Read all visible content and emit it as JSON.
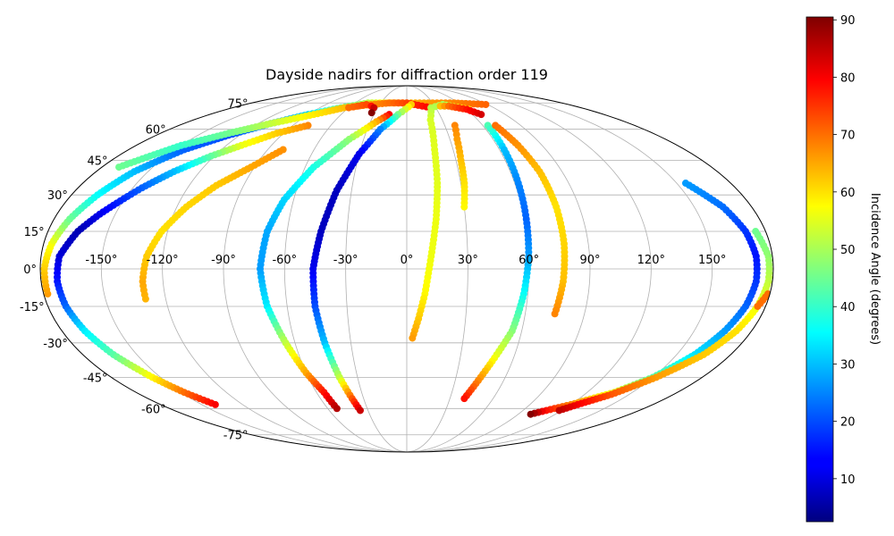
{
  "chart_data": {
    "type": "scatter",
    "projection": "mollweide",
    "title": "Dayside nadirs for diffraction order 119",
    "grid": true,
    "lon_ticks": [
      "-150°",
      "-120°",
      "-90°",
      "-60°",
      "-30°",
      "0°",
      "30°",
      "60°",
      "90°",
      "120°",
      "150°"
    ],
    "lat_ticks": [
      "-75°",
      "-60°",
      "-45°",
      "-30°",
      "-15°",
      "0°",
      "15°",
      "30°",
      "45°",
      "60°",
      "75°"
    ],
    "colorbar": {
      "label": "Incidence Angle (degrees)",
      "colormap": "jet",
      "range": [
        2.5,
        90.5
      ],
      "ticks": [
        "10",
        "20",
        "30",
        "40",
        "50",
        "60",
        "70",
        "80",
        "90"
      ]
    },
    "series": [
      {
        "points": [
          [
            -178,
            -10,
            66
          ],
          [
            -178,
            0,
            62
          ],
          [
            -176,
            10,
            57
          ],
          [
            -172,
            20,
            45
          ],
          [
            -166,
            30,
            36
          ],
          [
            -158,
            40,
            30
          ],
          [
            -144,
            50,
            22
          ],
          [
            -128,
            57,
            20
          ],
          [
            -110,
            63,
            25
          ],
          [
            -90,
            68,
            32
          ],
          [
            -68,
            72,
            42
          ],
          [
            -45,
            75,
            52
          ],
          [
            -22,
            75,
            60
          ],
          [
            0,
            75,
            64
          ],
          [
            25,
            75,
            66
          ],
          [
            55,
            75,
            68
          ],
          [
            88,
            74,
            71
          ]
        ]
      },
      {
        "points": [
          [
            -170,
            42,
            45
          ],
          [
            -150,
            52,
            40
          ],
          [
            -130,
            58,
            45
          ],
          [
            -110,
            63,
            52
          ],
          [
            -90,
            67,
            58
          ],
          [
            -65,
            72,
            63
          ],
          [
            -40,
            74,
            67
          ],
          [
            -20,
            75,
            70
          ],
          [
            0,
            75,
            74
          ],
          [
            25,
            72,
            80
          ]
        ]
      },
      {
        "points": [
          [
            -60,
            72,
            70
          ],
          [
            -45,
            74,
            73
          ],
          [
            -38,
            73,
            78
          ],
          [
            -34,
            72,
            84
          ],
          [
            -33,
            69,
            90
          ]
        ]
      },
      {
        "points": [
          [
            -78,
            62,
            68
          ],
          [
            -95,
            58,
            62
          ],
          [
            -110,
            52,
            56
          ],
          [
            -122,
            47,
            44
          ],
          [
            -135,
            40,
            30
          ],
          [
            -145,
            33,
            22
          ],
          [
            -158,
            22,
            12
          ],
          [
            -165,
            15,
            7
          ],
          [
            -171,
            5,
            10
          ],
          [
            -172,
            -5,
            15
          ],
          [
            -171,
            -15,
            22
          ],
          [
            -168,
            -25,
            34
          ],
          [
            -163,
            -35,
            43
          ],
          [
            -155,
            -45,
            58
          ],
          [
            -148,
            -52,
            70
          ],
          [
            -140,
            -58,
            80
          ]
        ]
      },
      {
        "points": [
          [
            -130,
            -12,
            64
          ],
          [
            -130,
            -5,
            65
          ],
          [
            -128,
            5,
            62
          ],
          [
            -123,
            15,
            60
          ],
          [
            -115,
            25,
            61
          ],
          [
            -105,
            34,
            62
          ],
          [
            -92,
            42,
            65
          ],
          [
            -80,
            50,
            67
          ]
        ]
      },
      {
        "points": [
          [
            -16,
            68,
            80
          ],
          [
            -25,
            64,
            65
          ],
          [
            -40,
            55,
            48
          ],
          [
            -55,
            42,
            38
          ],
          [
            -65,
            28,
            32
          ],
          [
            -70,
            15,
            28
          ],
          [
            -72,
            0,
            27
          ],
          [
            -70,
            -15,
            34
          ],
          [
            -65,
            -30,
            52
          ],
          [
            -60,
            -43,
            65
          ],
          [
            -55,
            -52,
            78
          ],
          [
            -53,
            -60,
            86
          ]
        ]
      },
      {
        "points": [
          [
            5,
            74,
            62
          ],
          [
            -8,
            68,
            46
          ],
          [
            -20,
            60,
            25
          ],
          [
            -30,
            48,
            12
          ],
          [
            -38,
            32,
            8
          ],
          [
            -43,
            15,
            8
          ],
          [
            -46,
            0,
            12
          ],
          [
            -46,
            -15,
            20
          ],
          [
            -44,
            -30,
            30
          ],
          [
            -41,
            -45,
            52
          ],
          [
            -38,
            -55,
            72
          ],
          [
            -36,
            -61,
            84
          ]
        ]
      },
      {
        "points": [
          [
            62,
            71,
            60
          ],
          [
            40,
            74,
            50
          ],
          [
            25,
            72,
            51
          ],
          [
            20,
            65,
            54
          ],
          [
            18,
            50,
            55
          ],
          [
            17,
            35,
            55
          ],
          [
            15,
            20,
            56
          ],
          [
            12,
            5,
            56
          ],
          [
            9,
            -10,
            58
          ],
          [
            6,
            -20,
            62
          ],
          [
            3,
            -28,
            66
          ]
        ]
      },
      {
        "points": [
          [
            38,
            62,
            68
          ],
          [
            35,
            55,
            66
          ],
          [
            33,
            45,
            63
          ],
          [
            32,
            35,
            60
          ],
          [
            30,
            25,
            58
          ]
        ]
      },
      {
        "points": [
          [
            36,
            73,
            63
          ],
          [
            45,
            73,
            70
          ],
          [
            60,
            71,
            78
          ],
          [
            68,
            68,
            83
          ]
        ]
      },
      {
        "points": [
          [
            64,
            62,
            42
          ],
          [
            63,
            50,
            30
          ],
          [
            62,
            35,
            25
          ],
          [
            61,
            20,
            22
          ],
          [
            60,
            5,
            27
          ],
          [
            58,
            -10,
            36
          ],
          [
            55,
            -25,
            47
          ],
          [
            50,
            -35,
            55
          ],
          [
            45,
            -45,
            66
          ],
          [
            40,
            -55,
            78
          ]
        ]
      },
      {
        "points": [
          [
            70,
            62,
            70
          ],
          [
            74,
            52,
            67
          ],
          [
            77,
            40,
            63
          ],
          [
            78,
            25,
            60
          ],
          [
            78,
            10,
            61
          ],
          [
            77,
            -5,
            63
          ],
          [
            75,
            -18,
            68
          ]
        ]
      },
      {
        "points": [
          [
            155,
            35,
            27
          ],
          [
            165,
            25,
            23
          ],
          [
            170,
            15,
            18
          ],
          [
            172,
            5,
            15
          ],
          [
            172,
            -5,
            18
          ],
          [
            170,
            -15,
            22
          ],
          [
            166,
            -25,
            27
          ],
          [
            160,
            -35,
            33
          ],
          [
            150,
            -45,
            43
          ],
          [
            138,
            -52,
            55
          ],
          [
            120,
            -58,
            68
          ],
          [
            108,
            -61,
            78
          ],
          [
            100,
            -63,
            90
          ]
        ]
      },
      {
        "points": [
          [
            175,
            15,
            45
          ],
          [
            178,
            5,
            48
          ],
          [
            178,
            -5,
            52
          ],
          [
            176,
            -15,
            56
          ],
          [
            172,
            -25,
            60
          ],
          [
            165,
            -35,
            62
          ],
          [
            152,
            -45,
            66
          ],
          [
            138,
            -53,
            72
          ],
          [
            125,
            -58,
            80
          ],
          [
            118,
            -61,
            85
          ]
        ]
      },
      {
        "points": [
          [
            179,
            -10,
            70
          ],
          [
            176,
            -15,
            70
          ]
        ]
      }
    ]
  }
}
